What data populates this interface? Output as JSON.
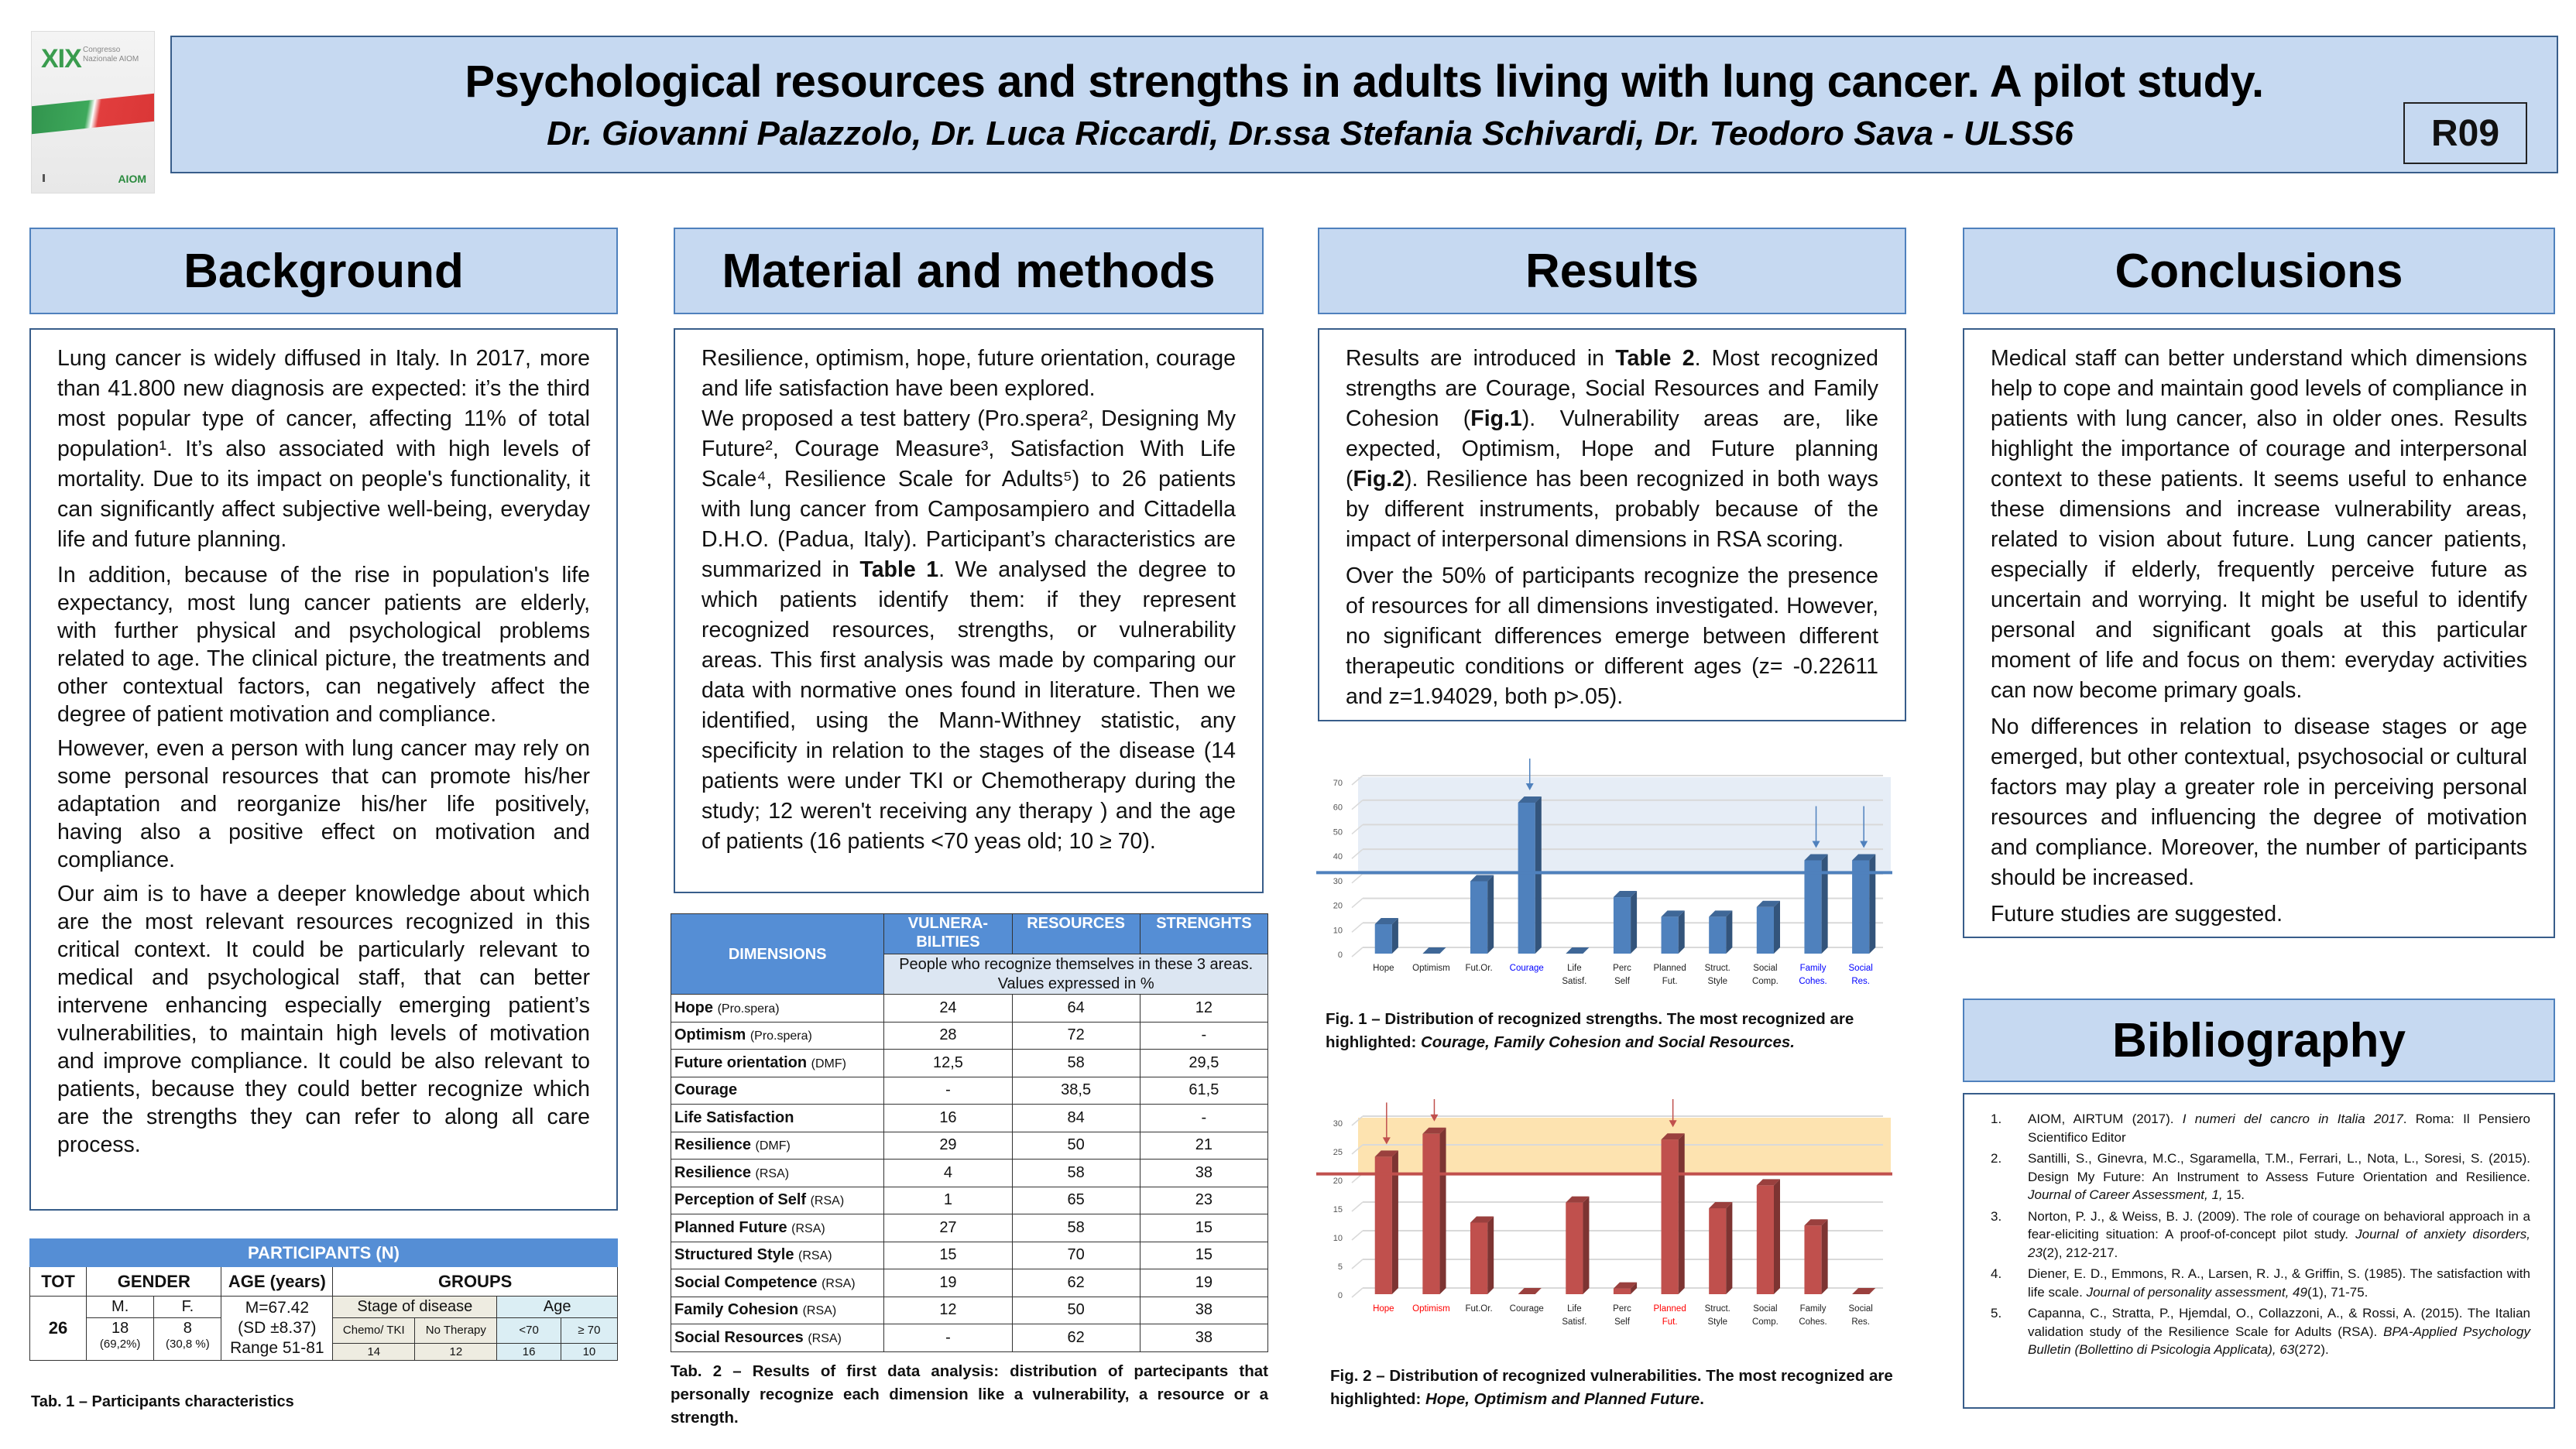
{
  "header": {
    "title": "Psychological resources and strengths in adults living with lung cancer. A pilot study.",
    "authors": "Dr. Giovanni Palazzolo, Dr. Luca Riccardi, Dr.ssa Stefania Schivardi, Dr. Teodoro Sava - ULSS6",
    "poster_code": "R09",
    "logo": {
      "numeral": "XIX",
      "line": "Congresso Nazionale AIOM",
      "association": "AIOM"
    }
  },
  "sections": {
    "background": {
      "heading": "Background",
      "paragraphs": [
        "Lung cancer is widely diffused in Italy. In 2017, more than 41.800 new diagnosis are expected: it’s the third most popular type of cancer, affecting 11% of total population¹. It’s also associated with high levels of mortality. Due to its impact on people's functionality, it can significantly affect subjective well-being, everyday life and future planning.",
        "In addition, because of the rise in population's life expectancy, most lung cancer patients are elderly, with further physical and psychological problems related to age. The clinical picture, the treatments and other contextual factors, can negatively affect the degree of patient motivation and compliance.",
        "However, even a person with lung cancer may rely on some personal resources that can promote his/her adaptation and reorganize his/her life positively, having also a positive effect on motivation and compliance.",
        "Our aim is to have a deeper knowledge about which are the most relevant resources recognized in this critical context. It could be particularly relevant to medical and psychological staff, that can better intervene enhancing especially emerging patient’s vulnerabilities, to maintain high levels of motivation and improve compliance. It could be also relevant to patients, because they could better recognize which are the strengths they can refer to along all care process."
      ]
    },
    "methods": {
      "heading": "Material and methods",
      "p1": "Resilience, optimism, hope, future orientation, courage and life satisfaction have been explored.",
      "p2_a": "We proposed a test battery (Pro.spera², Designing My Future², Courage Measure³, Satisfaction With Life Scale⁴, Resilience Scale for Adults⁵) to 26 patients with lung cancer from Camposampiero and Cittadella D.H.O. (Padua, Italy). Participant’s characteristics are summarized in ",
      "p2_bold": "Table 1",
      "p2_b": ". We analysed the degree to which patients identify them: if they represent recognized resources, strengths, or vulnerability areas. This first analysis was made by comparing our data with normative ones found in literature. Then we identified, using the Mann-Withney statistic, any specificity in relation to the stages of the disease (14 patients were under TKI or Chemotherapy during the study; 12 weren't receiving any therapy ) and the age of patients (16 patients <70 yeas old; 10 ≥ 70)."
    },
    "results": {
      "heading": "Results",
      "p1_a": "Results are introduced in ",
      "p1_b1": "Table 2",
      "p1_c": ". Most recognized strengths are Courage, Social Resources and Family Cohesion (",
      "p1_b2": "Fig.1",
      "p1_d": "). Vulnerability areas are, like expected, Optimism, Hope and Future planning (",
      "p1_b3": "Fig.2",
      "p1_e": "). Resilience has been recognized in both ways by different instruments, probably because of the impact of interpersonal dimensions in RSA scoring.",
      "p2": "Over the 50% of participants recognize the presence of resources for all dimensions investigated. However, no significant differences emerge between different therapeutic conditions or different ages (z= -0.22611 and z=1.94029, both p>.05)."
    },
    "conclusions": {
      "heading": "Conclusions",
      "paragraphs": [
        "Medical staff can better understand which dimensions help to cope and maintain good levels of compliance in patients with lung cancer, also in older ones. Results highlight the importance of courage and interpersonal context to these patients. It seems useful to enhance these dimensions and increase vulnerability areas, related to vision about future. Lung cancer patients, especially if elderly, frequently perceive future as uncertain and worrying. It might be useful to identify personal and significant goals at this particular moment of life and focus on them: everyday activities can now become primary goals.",
        "No differences in relation to disease stages or age emerged, but other contextual, psychosocial or cultural factors may play a greater role in perceiving personal resources and influencing the degree of motivation and compliance. Moreover, the number of participants should be increased.",
        "Future studies are suggested."
      ]
    },
    "bibliography": {
      "heading": "Bibliography",
      "items": [
        {
          "num": "1.",
          "a": "AIOM, AIRTUM (2017). ",
          "i": "I numeri del cancro in Italia 2017",
          "b": ". Roma: Il Pensiero Scientifico Editor"
        },
        {
          "num": "2.",
          "a": "Santilli, S., Ginevra, M.C., Sgaramella, T.M., Ferrari, L., Nota, L., Soresi, S. (2015). Design My Future: An Instrument to Assess Future Orientation and Resilience. ",
          "i": "Journal of Career Assessment, 1,",
          "b": " 15."
        },
        {
          "num": "3.",
          "a": "Norton, P. J., & Weiss, B. J. (2009). The role of courage on behavioral approach in a fear-eliciting situation: A proof-of-concept pilot study. ",
          "i": "Journal of anxiety disorders, 23",
          "b": "(2), 212-217."
        },
        {
          "num": "4.",
          "a": "Diener, E. D., Emmons, R. A., Larsen, R. J., & Griffin, S. (1985). The satisfaction with life scale. ",
          "i": "Journal of personality assessment, 49",
          "b": "(1), 71-75."
        },
        {
          "num": "5.",
          "a": "Capanna, C., Stratta, P., Hjemdal, O., Collazzoni, A., & Rossi, A. (2015). The Italian validation study of the Resilience Scale for Adults (RSA). ",
          "i": "BPA-Applied Psychology Bulletin (Bollettino di Psicologia Applicata), 63",
          "b": "(272)."
        }
      ]
    }
  },
  "table1": {
    "title": "PARTICIPANTS (N)",
    "col_tot": "TOT",
    "col_gender": "GENDER",
    "col_age": "AGE (years)",
    "col_groups": "GROUPS",
    "tot": "26",
    "male_label": "M.",
    "female_label": "F.",
    "male_n": "18",
    "male_pct": "(69,2%)",
    "female_n": "8",
    "female_pct": "(30,8 %)",
    "age_mean": "M=67.42",
    "age_sd": "(SD ±8.37)",
    "age_range": "Range 51-81",
    "stage_label": "Stage of disease",
    "age_group_label": "Age",
    "chemo_label": "Chemo/ TKI",
    "notherapy_label": "No Therapy",
    "lt70_label": "<70",
    "ge70_label": "≥ 70",
    "chemo_n": "14",
    "notherapy_n": "12",
    "lt70_n": "16",
    "ge70_n": "10",
    "caption": "Tab. 1 – Participants characteristics"
  },
  "table2": {
    "headers": {
      "dimensions": "DIMENSIONS",
      "vulnerabilities": "VULNERA-BILITIES",
      "resources": "RESOURCES",
      "strengths": "STRENGHTS",
      "note": "People who recognize themselves in these 3 areas. Values expressed in %"
    },
    "rows": [
      {
        "name": "Hope",
        "inst": "(Pro.spera)",
        "v": "24",
        "r": "64",
        "s": "12"
      },
      {
        "name": "Optimism",
        "inst": "(Pro.spera)",
        "v": "28",
        "r": "72",
        "s": "-"
      },
      {
        "name": "Future orientation",
        "inst": "(DMF)",
        "v": "12,5",
        "r": "58",
        "s": "29,5"
      },
      {
        "name": "Courage",
        "inst": "",
        "v": "-",
        "r": "38,5",
        "s": "61,5"
      },
      {
        "name": "Life Satisfaction",
        "inst": "",
        "v": "16",
        "r": "84",
        "s": "-"
      },
      {
        "name": "Resilience",
        "inst": "(DMF)",
        "v": "29",
        "r": "50",
        "s": "21"
      },
      {
        "name": "Resilience",
        "inst": "(RSA)",
        "v": "4",
        "r": "58",
        "s": "38"
      },
      {
        "name": "Perception of Self",
        "inst": "(RSA)",
        "v": "1",
        "r": "65",
        "s": "23"
      },
      {
        "name": "Planned Future",
        "inst": "(RSA)",
        "v": "27",
        "r": "58",
        "s": "15"
      },
      {
        "name": "Structured Style",
        "inst": "(RSA)",
        "v": "15",
        "r": "70",
        "s": "15"
      },
      {
        "name": "Social Competence",
        "inst": "(RSA)",
        "v": "19",
        "r": "62",
        "s": "19"
      },
      {
        "name": "Family Cohesion",
        "inst": "(RSA)",
        "v": "12",
        "r": "50",
        "s": "38"
      },
      {
        "name": "Social Resources",
        "inst": "(RSA)",
        "v": "-",
        "r": "62",
        "s": "38"
      }
    ],
    "caption": "Tab. 2 – Results of first data analysis: distribution of partecipants that personally recognize each dimension like a vulnerability, a resource or a strength."
  },
  "chart_data": [
    {
      "type": "bar",
      "title": "Fig. 1 – Distribution of recognized strengths",
      "categories": [
        "Hope",
        "Optimism",
        "Fut.Or.",
        "Courage",
        "Life Satisf.",
        "Perc Self",
        "Planned Fut.",
        "Struct. Style",
        "Social Comp.",
        "Family Cohes.",
        "Social Res."
      ],
      "values": [
        12,
        0,
        29.5,
        61.5,
        0,
        23,
        15,
        15,
        19,
        38,
        38
      ],
      "highlighted": [
        "Courage",
        "Family Cohes.",
        "Social Res."
      ],
      "threshold": 33,
      "ylim": [
        0,
        70
      ],
      "yticks": [
        0,
        10,
        20,
        30,
        40,
        50,
        60,
        70
      ],
      "grid": true,
      "bar_color": "#4f81bd",
      "highlight_label_color": "#0000ff",
      "band_color": "#e6edf6",
      "caption_a": "Fig. 1 – Distribution of recognized strengths. The most recognized are highlighted: ",
      "caption_i": "Courage, Family Cohesion and Social Resources.",
      "caption_b": ""
    },
    {
      "type": "bar",
      "title": "Fig. 2 – Distribution of recognized vulnerabilities",
      "categories": [
        "Hope",
        "Optimism",
        "Fut.Or.",
        "Courage",
        "Life Satisf.",
        "Perc Self",
        "Planned Fut.",
        "Struct. Style",
        "Social Comp.",
        "Family Cohes.",
        "Social Res."
      ],
      "values": [
        24,
        28,
        12.5,
        0,
        16,
        1,
        27,
        15,
        19,
        12,
        0
      ],
      "highlighted": [
        "Hope",
        "Optimism",
        "Planned Fut."
      ],
      "threshold": 21,
      "ylim": [
        0,
        30
      ],
      "yticks": [
        0,
        5,
        10,
        15,
        20,
        25,
        30
      ],
      "grid": true,
      "bar_color": "#c0504d",
      "highlight_label_color": "#ff0000",
      "band_color": "#fde3b0",
      "caption_a": "Fig. 2 – Distribution of recognized vulnerabilities. The most recognized are highlighted: ",
      "caption_i": "Hope, Optimism and Planned Future",
      "caption_b": "."
    }
  ]
}
